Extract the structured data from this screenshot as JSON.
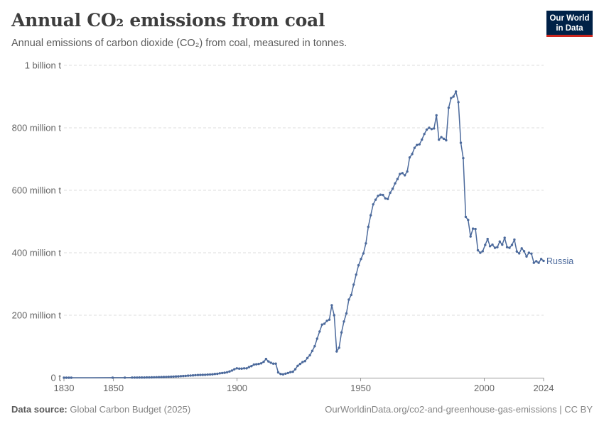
{
  "header": {
    "title": "Annual CO₂ emissions from coal",
    "subtitle": "Annual emissions of carbon dioxide (CO₂) from coal, measured in tonnes."
  },
  "logo": {
    "line1": "Our World",
    "line2": "in Data",
    "background": "#002147",
    "accent": "#ce261e"
  },
  "footer": {
    "source_label": "Data source:",
    "source_value": "Global Carbon Budget (2025)",
    "url": "OurWorldinData.org/co2-and-greenhouse-gas-emissions | CC BY"
  },
  "chart_data": {
    "type": "line",
    "title": "Annual CO₂ emissions from coal",
    "subtitle": "Annual emissions of carbon dioxide (CO₂) from coal, measured in tonnes.",
    "xlabel": "",
    "ylabel": "",
    "xlim": [
      1830,
      2024
    ],
    "ylim": [
      0,
      1000000000
    ],
    "x_ticks": [
      1830,
      1850,
      1900,
      1950,
      2000,
      2024
    ],
    "y_ticks": [
      {
        "value": 0,
        "label": "0 t"
      },
      {
        "value": 200000000,
        "label": "200 million t"
      },
      {
        "value": 400000000,
        "label": "400 million t"
      },
      {
        "value": 600000000,
        "label": "600 million t"
      },
      {
        "value": 800000000,
        "label": "800 million t"
      },
      {
        "value": 1000000000,
        "label": "1 billion t"
      }
    ],
    "grid": "horizontal-dashed",
    "legend": "inline-right",
    "series": [
      {
        "name": "Russia",
        "color": "#4c6a9c",
        "points": [
          [
            1830,
            0.0
          ],
          [
            1831,
            0.0
          ],
          [
            1832,
            0.0
          ],
          [
            1833,
            0.0
          ],
          [
            1850,
            0.2
          ],
          [
            1855,
            0.3
          ],
          [
            1858,
            0.4
          ],
          [
            1859,
            0.4
          ],
          [
            1860,
            0.5
          ],
          [
            1861,
            0.6
          ],
          [
            1862,
            0.6
          ],
          [
            1863,
            0.7
          ],
          [
            1864,
            0.8
          ],
          [
            1865,
            1.0
          ],
          [
            1866,
            1.2
          ],
          [
            1867,
            1.4
          ],
          [
            1868,
            1.6
          ],
          [
            1869,
            1.8
          ],
          [
            1870,
            2.0
          ],
          [
            1871,
            2.3
          ],
          [
            1872,
            2.6
          ],
          [
            1873,
            2.9
          ],
          [
            1874,
            3.2
          ],
          [
            1875,
            3.6
          ],
          [
            1876,
            4.0
          ],
          [
            1877,
            4.4
          ],
          [
            1878,
            4.9
          ],
          [
            1879,
            5.5
          ],
          [
            1880,
            6.0
          ],
          [
            1881,
            6.5
          ],
          [
            1882,
            7.0
          ],
          [
            1883,
            7.6
          ],
          [
            1884,
            8.2
          ],
          [
            1885,
            8.6
          ],
          [
            1886,
            8.9
          ],
          [
            1887,
            9.0
          ],
          [
            1888,
            9.4
          ],
          [
            1889,
            10.0
          ],
          [
            1890,
            10.5
          ],
          [
            1891,
            11.0
          ],
          [
            1892,
            12.0
          ],
          [
            1893,
            12.5
          ],
          [
            1894,
            14.0
          ],
          [
            1895,
            15.0
          ],
          [
            1896,
            16.0
          ],
          [
            1897,
            17.5
          ],
          [
            1898,
            20.0
          ],
          [
            1899,
            23.0
          ],
          [
            1900,
            27.0
          ],
          [
            1901,
            30.0
          ],
          [
            1902,
            29.0
          ],
          [
            1903,
            29.0
          ],
          [
            1904,
            30.0
          ],
          [
            1905,
            30.0
          ],
          [
            1906,
            34.0
          ],
          [
            1907,
            37.0
          ],
          [
            1908,
            42.0
          ],
          [
            1909,
            43.0
          ],
          [
            1910,
            44.0
          ],
          [
            1911,
            46.0
          ],
          [
            1912,
            51.0
          ],
          [
            1913,
            60.0
          ],
          [
            1914,
            52.0
          ],
          [
            1915,
            48.0
          ],
          [
            1916,
            45.0
          ],
          [
            1917,
            45.0
          ],
          [
            1918,
            17.0
          ],
          [
            1919,
            12.0
          ],
          [
            1920,
            11.0
          ],
          [
            1921,
            13.0
          ],
          [
            1922,
            15.0
          ],
          [
            1923,
            18.0
          ],
          [
            1924,
            19.0
          ],
          [
            1925,
            27.0
          ],
          [
            1926,
            38.0
          ],
          [
            1927,
            44.0
          ],
          [
            1928,
            50.0
          ],
          [
            1929,
            53.0
          ],
          [
            1930,
            63.0
          ],
          [
            1931,
            72.0
          ],
          [
            1932,
            86.0
          ],
          [
            1933,
            101.0
          ],
          [
            1934,
            125.0
          ],
          [
            1935,
            148.0
          ],
          [
            1936,
            170.0
          ],
          [
            1937,
            173.0
          ],
          [
            1938,
            182.0
          ],
          [
            1939,
            186.0
          ],
          [
            1940,
            232.0
          ],
          [
            1941,
            200.0
          ],
          [
            1942,
            84.0
          ],
          [
            1943,
            96.0
          ],
          [
            1944,
            145.0
          ],
          [
            1945,
            180.0
          ],
          [
            1946,
            206.0
          ],
          [
            1947,
            250.0
          ],
          [
            1948,
            265.0
          ],
          [
            1949,
            298.0
          ],
          [
            1950,
            330.0
          ],
          [
            1951,
            360.0
          ],
          [
            1952,
            380.0
          ],
          [
            1953,
            398.0
          ],
          [
            1954,
            430.0
          ],
          [
            1955,
            483.0
          ],
          [
            1956,
            520.0
          ],
          [
            1957,
            555.0
          ],
          [
            1958,
            570.0
          ],
          [
            1959,
            582.0
          ],
          [
            1960,
            586.0
          ],
          [
            1961,
            585.0
          ],
          [
            1962,
            574.0
          ],
          [
            1963,
            572.0
          ],
          [
            1964,
            592.0
          ],
          [
            1965,
            605.0
          ],
          [
            1966,
            622.0
          ],
          [
            1967,
            636.0
          ],
          [
            1968,
            652.0
          ],
          [
            1969,
            655.0
          ],
          [
            1970,
            648.0
          ],
          [
            1971,
            660.0
          ],
          [
            1972,
            705.0
          ],
          [
            1973,
            716.0
          ],
          [
            1974,
            736.0
          ],
          [
            1975,
            745.0
          ],
          [
            1976,
            747.0
          ],
          [
            1977,
            762.0
          ],
          [
            1978,
            780.0
          ],
          [
            1979,
            794.0
          ],
          [
            1980,
            800.0
          ],
          [
            1981,
            796.0
          ],
          [
            1982,
            798.0
          ],
          [
            1983,
            840.0
          ],
          [
            1984,
            762.0
          ],
          [
            1985,
            770.0
          ],
          [
            1986,
            765.0
          ],
          [
            1987,
            760.0
          ],
          [
            1988,
            864.0
          ],
          [
            1989,
            895.0
          ],
          [
            1990,
            900.0
          ],
          [
            1991,
            916.0
          ],
          [
            1992,
            882.0
          ],
          [
            1993,
            752.0
          ],
          [
            1994,
            703.0
          ],
          [
            1995,
            515.0
          ],
          [
            1996,
            505.0
          ],
          [
            1997,
            452.0
          ],
          [
            1998,
            477.0
          ],
          [
            1999,
            476.0
          ],
          [
            2000,
            408.0
          ],
          [
            2001,
            400.0
          ],
          [
            2002,
            405.0
          ],
          [
            2003,
            425.0
          ],
          [
            2004,
            444.0
          ],
          [
            2005,
            421.0
          ],
          [
            2006,
            426.0
          ],
          [
            2007,
            416.0
          ],
          [
            2008,
            418.0
          ],
          [
            2009,
            436.0
          ],
          [
            2010,
            426.0
          ],
          [
            2011,
            448.0
          ],
          [
            2012,
            418.0
          ],
          [
            2013,
            416.0
          ],
          [
            2014,
            425.0
          ],
          [
            2015,
            442.0
          ],
          [
            2016,
            404.0
          ],
          [
            2017,
            398.0
          ],
          [
            2018,
            414.0
          ],
          [
            2019,
            405.0
          ],
          [
            2020,
            388.0
          ],
          [
            2021,
            400.0
          ],
          [
            2022,
            397.0
          ],
          [
            2023,
            368.0
          ],
          [
            2024,
            373.0
          ],
          [
            2025,
            368.0
          ],
          [
            2026,
            380.0
          ],
          [
            2027,
            374.0
          ]
        ],
        "units": "million t"
      }
    ]
  }
}
